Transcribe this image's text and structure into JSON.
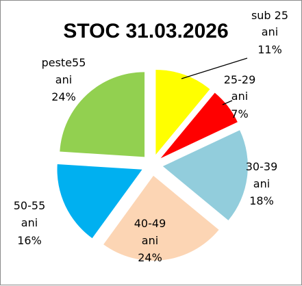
{
  "chart_data": {
    "type": "pie",
    "title": "STOC 31.03.2026",
    "exploded": true,
    "legend": "none",
    "slices": [
      {
        "category": "sub 25 ani",
        "line1": "sub 25",
        "line2": "ani",
        "percent": "11%",
        "value": 11,
        "color": "#ffff00"
      },
      {
        "category": "25-29 ani",
        "line1": "25-29",
        "line2": "ani",
        "percent": "7%",
        "value": 7,
        "color": "#ff0000"
      },
      {
        "category": "30-39 ani",
        "line1": "30-39",
        "line2": "ani",
        "percent": "18%",
        "value": 18,
        "color": "#92cddc"
      },
      {
        "category": "40-49 ani",
        "line1": "40-49",
        "line2": "ani",
        "percent": "24%",
        "value": 24,
        "color": "#fcd5b4"
      },
      {
        "category": "50-55 ani",
        "line1": "50-55",
        "line2": "ani",
        "percent": "16%",
        "value": 16,
        "color": "#00b0f0"
      },
      {
        "category": "peste55 ani",
        "line1": "peste55",
        "line2": "ani",
        "percent": "24%",
        "value": 24,
        "color": "#92d050"
      }
    ]
  }
}
